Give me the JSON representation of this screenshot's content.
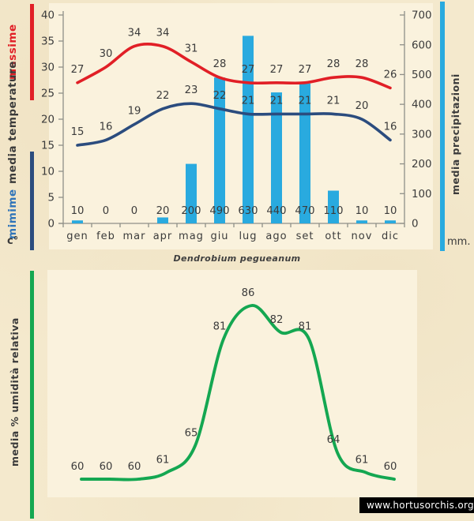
{
  "page": {
    "title": "Dendrobium pegueanum",
    "watermark": "www.hortusorchis.org",
    "colors": {
      "background": "#f4e9cd",
      "plot_background": "#faf2dd",
      "max_line": "#e11f26",
      "min_line": "#2b4c7e",
      "precipitation_bar": "#29aadf",
      "humidity_line": "#14a751",
      "axis": "#8f8f88",
      "text": "#3b3b3b",
      "min_label_blue": "#2f74b9",
      "watermark_bg": "#000000",
      "watermark_text": "#ffffff"
    }
  },
  "top_chart": {
    "left_labels": {
      "massime": "massime",
      "media_temperature": "media temperature",
      "mimime": "mimime",
      "unit": "c°"
    },
    "right_labels": {
      "media_precipitazioni": "media precipitazioni",
      "unit": "mm."
    }
  },
  "bottom_chart": {
    "side_label": "media % umidità relativa"
  },
  "chart_data": [
    {
      "type": "line",
      "categories": [
        "gen",
        "feb",
        "mar",
        "apr",
        "mag",
        "giu",
        "lug",
        "ago",
        "set",
        "ott",
        "nov",
        "dic"
      ],
      "series": [
        {
          "name": "massime",
          "type": "line",
          "axis": "left",
          "color_key": "max_line",
          "values": [
            27,
            30,
            34,
            34,
            31,
            28,
            27,
            27,
            27,
            28,
            28,
            26
          ]
        },
        {
          "name": "mimime",
          "type": "line",
          "axis": "left",
          "color_key": "min_line",
          "values": [
            15,
            16,
            19,
            22,
            23,
            22,
            21,
            21,
            21,
            21,
            20,
            16
          ]
        },
        {
          "name": "media precipitazioni",
          "type": "bar",
          "axis": "right",
          "color_key": "precipitation_bar",
          "values": [
            10,
            0,
            0,
            20,
            200,
            490,
            630,
            440,
            470,
            110,
            10,
            10
          ]
        }
      ],
      "left_axis": {
        "label": "media temperature c°",
        "range": [
          0,
          40
        ],
        "ticks": [
          0,
          5,
          10,
          15,
          20,
          25,
          30,
          35,
          40
        ]
      },
      "right_axis": {
        "label": "media precipitazioni mm.",
        "range": [
          0,
          700
        ],
        "ticks": [
          0,
          100,
          200,
          300,
          400,
          500,
          600,
          700
        ]
      },
      "grid": false,
      "legend_position": "left-and-right-rotated"
    },
    {
      "type": "line",
      "categories": [
        "gen",
        "feb",
        "mar",
        "apr",
        "mag",
        "giu",
        "lug",
        "ago",
        "set",
        "ott",
        "nov",
        "dic"
      ],
      "x_axis_labels_visible": false,
      "series": [
        {
          "name": "media % umidità relativa",
          "type": "line",
          "color_key": "humidity_line",
          "values": [
            60,
            60,
            60,
            61,
            65,
            81,
            86,
            82,
            81,
            64,
            61,
            60
          ]
        }
      ],
      "grid": false
    }
  ]
}
